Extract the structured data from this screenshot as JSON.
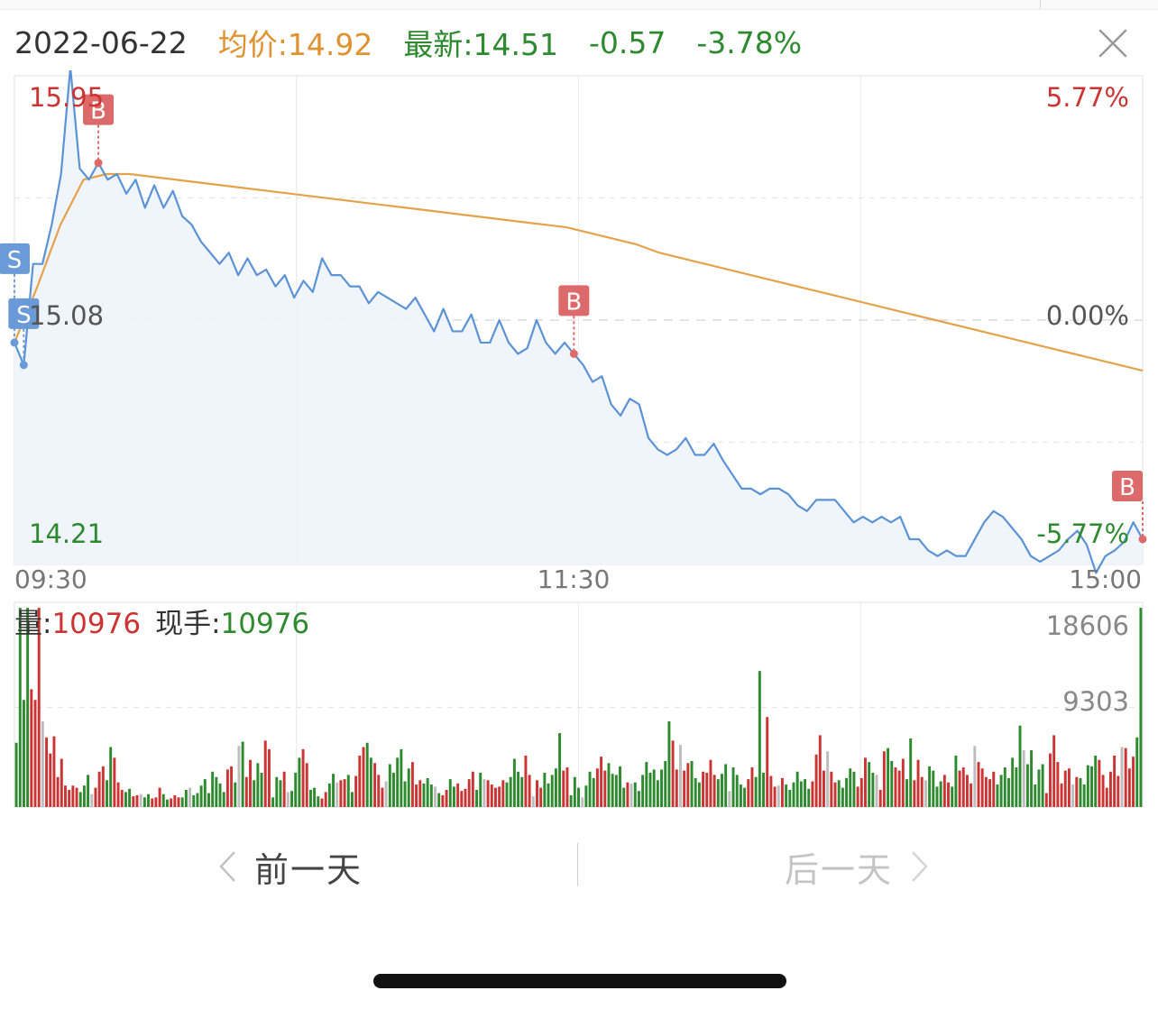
{
  "header": {
    "date": "2022-06-22",
    "avg_label": "均价:14.92",
    "latest_label": "最新:14.51",
    "change": "-0.57",
    "change_pct": "-3.78%"
  },
  "colors": {
    "price_line": "#5b93d6",
    "avg_line": "#e4a34b",
    "up": "#cc3333",
    "down": "#2e8a2e",
    "neutral": "#bdbdbd",
    "marker_buy": "#dd6a6a",
    "marker_sell": "#6a9ad8"
  },
  "chart_data": [
    {
      "type": "line",
      "x_ticks": [
        "09:30",
        "11:30",
        "15:00"
      ],
      "y_left_labels": {
        "high": "15.95",
        "mid": "15.08",
        "low": "14.21"
      },
      "y_right_labels": {
        "high": "5.77%",
        "mid": "0.00%",
        "low": "-5.77%"
      },
      "ylim": [
        14.21,
        15.95
      ],
      "prev_close": 15.08,
      "series": [
        {
          "name": "最新",
          "values": [
            15.0,
            14.92,
            15.28,
            15.28,
            15.42,
            15.6,
            15.98,
            15.62,
            15.58,
            15.64,
            15.58,
            15.6,
            15.53,
            15.58,
            15.48,
            15.56,
            15.48,
            15.54,
            15.45,
            15.42,
            15.36,
            15.32,
            15.28,
            15.32,
            15.24,
            15.3,
            15.24,
            15.26,
            15.2,
            15.24,
            15.16,
            15.22,
            15.18,
            15.3,
            15.24,
            15.24,
            15.2,
            15.2,
            15.14,
            15.18,
            15.16,
            15.14,
            15.12,
            15.16,
            15.1,
            15.04,
            15.12,
            15.04,
            15.04,
            15.1,
            15.0,
            15.0,
            15.08,
            15.0,
            14.96,
            14.98,
            15.08,
            15.0,
            14.96,
            15.0,
            14.96,
            14.92,
            14.86,
            14.88,
            14.78,
            14.74,
            14.8,
            14.78,
            14.66,
            14.62,
            14.6,
            14.62,
            14.66,
            14.6,
            14.6,
            14.64,
            14.58,
            14.53,
            14.48,
            14.48,
            14.46,
            14.48,
            14.48,
            14.46,
            14.42,
            14.4,
            14.44,
            14.44,
            14.44,
            14.4,
            14.36,
            14.38,
            14.36,
            14.38,
            14.36,
            14.38,
            14.3,
            14.3,
            14.26,
            14.24,
            14.26,
            14.24,
            14.24,
            14.3,
            14.36,
            14.4,
            14.38,
            14.34,
            14.3,
            14.24,
            14.22,
            14.24,
            14.26,
            14.3,
            14.33,
            14.28,
            14.18,
            14.24,
            14.26,
            14.29,
            14.36,
            14.3
          ],
          "color": "#5b93d6"
        },
        {
          "name": "均价",
          "values": [
            15.0,
            15.2,
            15.42,
            15.58,
            15.6,
            15.6,
            15.59,
            15.58,
            15.57,
            15.56,
            15.55,
            15.54,
            15.53,
            15.52,
            15.51,
            15.5,
            15.49,
            15.48,
            15.47,
            15.46,
            15.45,
            15.44,
            15.43,
            15.42,
            15.41,
            15.39,
            15.37,
            15.35,
            15.32,
            15.3,
            15.28,
            15.26,
            15.24,
            15.22,
            15.2,
            15.18,
            15.16,
            15.14,
            15.12,
            15.1,
            15.08,
            15.06,
            15.04,
            15.02,
            15.0,
            14.98,
            14.96,
            14.94,
            14.92,
            14.9
          ],
          "color": "#e4a34b"
        }
      ],
      "markers": [
        {
          "label": "S",
          "index": 0,
          "kind": "sell"
        },
        {
          "label": "S",
          "index": 1,
          "kind": "sell"
        },
        {
          "label": "B",
          "index": 9,
          "kind": "buy"
        },
        {
          "label": "B",
          "index": 60,
          "kind": "buy"
        },
        {
          "label": "B",
          "index": 121,
          "kind": "buy"
        }
      ]
    },
    {
      "type": "bar",
      "title_prefix": "量:",
      "volume": "10976",
      "hand_prefix": "现手:",
      "hand": "10976",
      "y_labels": [
        "18606",
        "9303"
      ],
      "ylim": [
        0,
        18606
      ],
      "values": [
        6000,
        18600,
        10000,
        18600,
        11000,
        10000,
        18600,
        8000,
        6500,
        5000,
        6600,
        2800,
        4500,
        2000,
        1600,
        2000,
        1800,
        1400,
        2000,
        3000,
        1200,
        1800,
        3300,
        3800,
        2500,
        5600,
        4600,
        2300,
        1600,
        1400,
        1700,
        1000,
        1100,
        1200,
        900,
        1200,
        800,
        900,
        1800,
        1200,
        700,
        800,
        1100,
        900,
        900,
        1600,
        1800,
        1100,
        1300,
        2000,
        2600,
        1300,
        3300,
        2800,
        2200,
        1400,
        3500,
        3800,
        2300,
        5700,
        6100,
        2800,
        4400,
        2500,
        4100,
        3200,
        6200,
        5400,
        900,
        2800,
        2500,
        3300,
        1400,
        1500,
        3200,
        4600,
        5400,
        4100,
        1600,
        1800,
        1000,
        800,
        1400,
        2200,
        3100,
        2300,
        2500,
        2600,
        3000,
        1400,
        2900,
        4800,
        5600,
        6000,
        4600,
        4100,
        3000,
        1800,
        2400,
        4000,
        3200,
        4600,
        5400,
        2400,
        3600,
        4200,
        2100,
        2500,
        2200,
        2700,
        2100,
        1900,
        1300,
        1100,
        1600,
        2600,
        1900,
        2200,
        1500,
        1700,
        2600,
        3300,
        1600,
        3200,
        2600,
        2500,
        2100,
        1800,
        1900,
        2500,
        2300,
        2800,
        4500,
        3300,
        2800,
        4800,
        3000,
        1000,
        2500,
        1800,
        3200,
        2200,
        3000,
        3600,
        6900,
        3400,
        3700,
        1100,
        2800,
        1800,
        900,
        2000,
        3300,
        2700,
        3600,
        4700,
        3400,
        4100,
        3100,
        3000,
        3800,
        1800,
        2300,
        2200,
        2300,
        1500,
        3000,
        4200,
        3200,
        3500,
        2500,
        3500,
        4300,
        8000,
        6200,
        3500,
        5800,
        3400,
        4100,
        4300,
        2700,
        2300,
        3300,
        3200,
        4400,
        3000,
        2600,
        3100,
        4000,
        1500,
        3700,
        3000,
        2100,
        1800,
        2600,
        3700,
        2800,
        12700,
        3200,
        8400,
        2900,
        1900,
        2000,
        2700,
        2100,
        1600,
        2300,
        3300,
        2400,
        2600,
        1700,
        2400,
        4900,
        6700,
        3400,
        5200,
        3300,
        2300,
        2500,
        1800,
        2700,
        3600,
        3300,
        1900,
        2700,
        4600,
        4200,
        3200,
        3000,
        1600,
        5200,
        5500,
        4300,
        3700,
        3400,
        4500,
        2600,
        6400,
        2500,
        4400,
        2800,
        2500,
        3800,
        3400,
        1900,
        2400,
        3000,
        2300,
        1900,
        4800,
        3400,
        3700,
        3000,
        2200,
        5700,
        4200,
        3600,
        2800,
        2600,
        3300,
        2100,
        3000,
        3700,
        2700,
        4600,
        3700,
        7600,
        5300,
        4000,
        5300,
        2100,
        3500,
        4000,
        1300,
        5000,
        6700,
        4200,
        2200,
        3400,
        3600,
        2100,
        2800,
        2700,
        2100,
        3900,
        3800,
        4800,
        4400,
        3000,
        1800,
        3300,
        4800,
        2900,
        5600,
        5500,
        3600,
        4700,
        6500,
        18600
      ]
    }
  ],
  "nav": {
    "prev_label": "前一天",
    "next_label": "后一天"
  }
}
